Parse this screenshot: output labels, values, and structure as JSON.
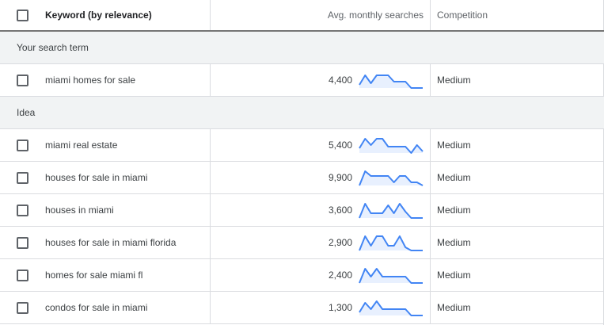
{
  "header": {
    "keyword_label": "Keyword (by relevance)",
    "searches_label": "Avg. monthly searches",
    "competition_label": "Competition"
  },
  "groups": {
    "search_term_label": "Your search term",
    "idea_label": "Idea"
  },
  "colors": {
    "spark_line": "#4285f4",
    "spark_fill": "#e8f0fe"
  },
  "search_term_row": {
    "keyword": "miami homes for sale",
    "searches": "4,400",
    "competition": "Medium",
    "trend": [
      0.2,
      0.8,
      0.3,
      0.8,
      0.8,
      0.8,
      0.4,
      0.4,
      0.4,
      0.0,
      0.0,
      0.0
    ]
  },
  "idea_rows": [
    {
      "keyword": "miami real estate",
      "searches": "5,400",
      "competition": "Medium",
      "trend": [
        0.3,
        0.9,
        0.5,
        0.9,
        0.9,
        0.4,
        0.4,
        0.4,
        0.4,
        0.0,
        0.5,
        0.1
      ]
    },
    {
      "keyword": "houses for sale in miami",
      "searches": "9,900",
      "competition": "Medium",
      "trend": [
        0.0,
        0.9,
        0.6,
        0.6,
        0.6,
        0.6,
        0.2,
        0.6,
        0.6,
        0.2,
        0.2,
        0.0
      ]
    },
    {
      "keyword": "houses in miami",
      "searches": "3,600",
      "competition": "Medium",
      "trend": [
        0.0,
        0.9,
        0.3,
        0.3,
        0.3,
        0.8,
        0.3,
        0.9,
        0.4,
        0.0,
        0.0,
        0.0
      ]
    },
    {
      "keyword": "houses for sale in miami florida",
      "searches": "2,900",
      "competition": "Medium",
      "trend": [
        0.0,
        0.9,
        0.3,
        0.9,
        0.9,
        0.3,
        0.3,
        0.9,
        0.2,
        0.0,
        0.0,
        0.0
      ]
    },
    {
      "keyword": "homes for sale miami fl",
      "searches": "2,400",
      "competition": "Medium",
      "trend": [
        0.0,
        0.9,
        0.4,
        0.9,
        0.4,
        0.4,
        0.4,
        0.4,
        0.4,
        0.0,
        0.0,
        0.0
      ]
    },
    {
      "keyword": "condos for sale in miami",
      "searches": "1,300",
      "competition": "Medium",
      "trend": [
        0.2,
        0.8,
        0.4,
        0.9,
        0.4,
        0.4,
        0.4,
        0.4,
        0.4,
        0.0,
        0.0,
        0.0
      ]
    }
  ]
}
